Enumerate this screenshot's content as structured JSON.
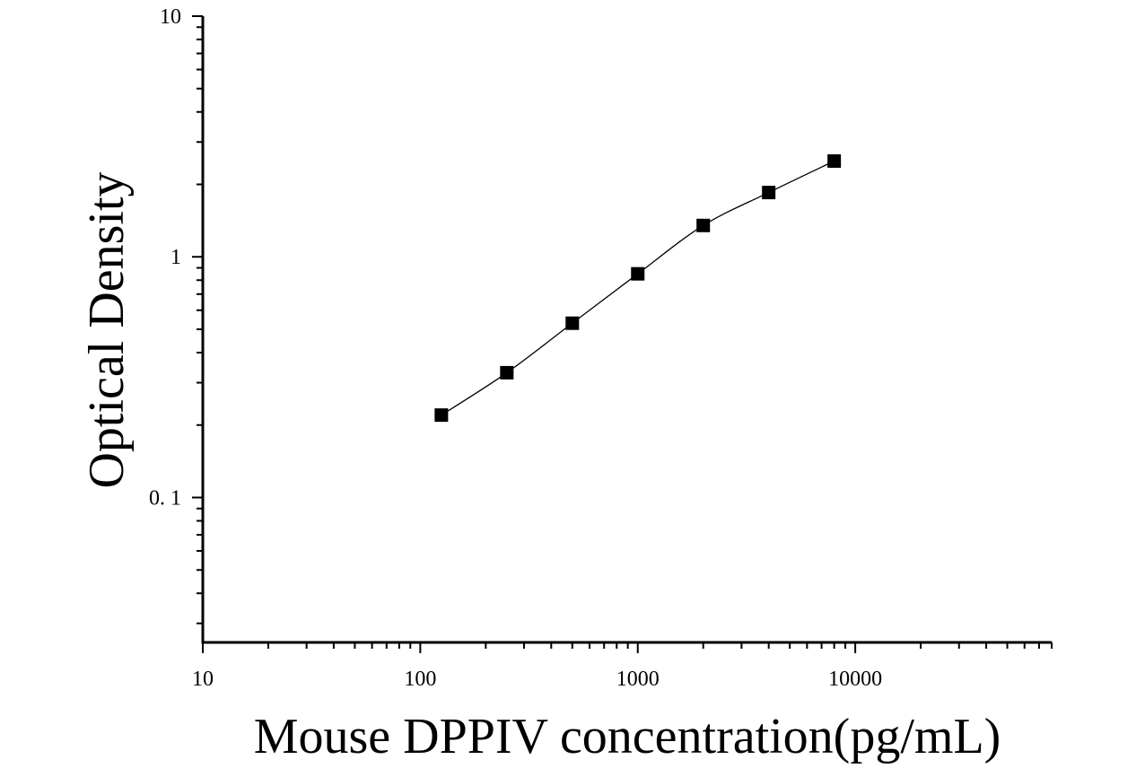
{
  "chart_data": {
    "type": "scatter",
    "title": "",
    "xlabel": "Mouse DPPIV concentration(pg/mL)",
    "ylabel": "Optical Density",
    "x_scale": "log",
    "y_scale": "log",
    "xlim": [
      10,
      80000
    ],
    "ylim": [
      0.025,
      10
    ],
    "x_ticks": [
      {
        "value": 10,
        "label": "10"
      },
      {
        "value": 100,
        "label": "100"
      },
      {
        "value": 1000,
        "label": "1000"
      },
      {
        "value": 10000,
        "label": "10000"
      }
    ],
    "y_ticks": [
      {
        "value": 10,
        "label": "10"
      },
      {
        "value": 1,
        "label": "1"
      },
      {
        "value": 0.1,
        "label": "0. 1"
      }
    ],
    "grid": false,
    "legend": false,
    "series": [
      {
        "marker": "square",
        "color": "#000000",
        "x": [
          125,
          250,
          500,
          1000,
          2000,
          4000,
          8000
        ],
        "y": [
          0.22,
          0.33,
          0.53,
          0.85,
          1.35,
          1.85,
          2.5
        ]
      }
    ],
    "fit_curve": {
      "color": "#000000",
      "style": "smooth line through points"
    }
  }
}
